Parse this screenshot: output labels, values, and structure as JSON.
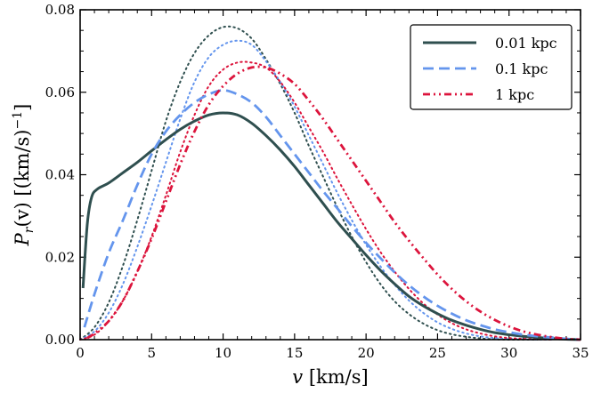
{
  "chart_data": {
    "type": "line",
    "xlabel": "v [km/s]",
    "ylabel": "P_r(v) [(km/s)^-1]",
    "xlabel_parts": {
      "symbol": "v",
      "unit": " [km/s]"
    },
    "ylabel_parts": {
      "symbol": "P",
      "sub": "r",
      "arg": "(v)",
      "unit": " [(km/s)",
      "exp": "−1",
      "close": "]"
    },
    "xlim": [
      0,
      35
    ],
    "ylim": [
      0,
      0.08
    ],
    "xticks": [
      0,
      5,
      10,
      15,
      20,
      25,
      30,
      35
    ],
    "yticks": [
      0.0,
      0.02,
      0.04,
      0.06,
      0.08
    ],
    "xtick_labels": [
      "0",
      "5",
      "10",
      "15",
      "20",
      "25",
      "30",
      "35"
    ],
    "ytick_labels": [
      "0.00",
      "0.02",
      "0.04",
      "0.06",
      "0.08"
    ],
    "grid": false,
    "legend_position": "top-right",
    "series": [
      {
        "name": "0.01 kpc",
        "color": "#2f4f4f",
        "style": "solid",
        "in_legend": true,
        "x": [
          0.2,
          0.5,
          0.8,
          1.2,
          2,
          3,
          4,
          5,
          6,
          7,
          8,
          9,
          10,
          11,
          12,
          13,
          14,
          15,
          16,
          17,
          18,
          19,
          20,
          21,
          22,
          23,
          24,
          25,
          26,
          27,
          28,
          29,
          30,
          31,
          32,
          33,
          34,
          35
        ],
        "values": [
          0.0125,
          0.028,
          0.0345,
          0.0365,
          0.038,
          0.0405,
          0.043,
          0.0458,
          0.0485,
          0.051,
          0.053,
          0.0545,
          0.055,
          0.0545,
          0.0525,
          0.0495,
          0.046,
          0.042,
          0.0375,
          0.033,
          0.0285,
          0.0245,
          0.0205,
          0.0168,
          0.0135,
          0.0105,
          0.0082,
          0.0063,
          0.0047,
          0.0035,
          0.0025,
          0.0017,
          0.0012,
          0.0008,
          0.0005,
          0.0003,
          0.0001,
          0.0
        ]
      },
      {
        "name": "0.1 kpc",
        "color": "#6495ed",
        "style": "dashed",
        "in_legend": true,
        "x": [
          0.3,
          1,
          2,
          3,
          4,
          5,
          6,
          7,
          8,
          9,
          10,
          11,
          12,
          13,
          14,
          15,
          16,
          17,
          18,
          19,
          20,
          21,
          22,
          23,
          24,
          25,
          26,
          27,
          28,
          29,
          30,
          31,
          32,
          33,
          34,
          35
        ],
        "values": [
          0.003,
          0.011,
          0.021,
          0.029,
          0.0375,
          0.045,
          0.0505,
          0.0545,
          0.0575,
          0.0595,
          0.0605,
          0.0595,
          0.0575,
          0.054,
          0.0495,
          0.045,
          0.0405,
          0.036,
          0.0318,
          0.0275,
          0.0235,
          0.0198,
          0.0163,
          0.0132,
          0.0105,
          0.0082,
          0.0063,
          0.0047,
          0.0035,
          0.0025,
          0.0018,
          0.0012,
          0.0008,
          0.0005,
          0.0002,
          0.0
        ]
      },
      {
        "name": "1 kpc",
        "color": "#dc143c",
        "style": "dashdotdot",
        "in_legend": true,
        "x": [
          0.5,
          1,
          2,
          3,
          4,
          5,
          6,
          7,
          8,
          9,
          10,
          11,
          12,
          13,
          14,
          15,
          16,
          17,
          18,
          19,
          20,
          21,
          22,
          23,
          24,
          25,
          26,
          27,
          28,
          29,
          30,
          31,
          32,
          33,
          34,
          35
        ],
        "values": [
          0.0004,
          0.0015,
          0.0045,
          0.0095,
          0.0165,
          0.0245,
          0.0335,
          0.0425,
          0.0505,
          0.057,
          0.0615,
          0.0645,
          0.066,
          0.066,
          0.0645,
          0.062,
          0.058,
          0.0535,
          0.0485,
          0.0435,
          0.0385,
          0.0335,
          0.0285,
          0.024,
          0.0198,
          0.0158,
          0.0123,
          0.0093,
          0.0068,
          0.0048,
          0.0032,
          0.002,
          0.0012,
          0.0006,
          0.0002,
          0.0
        ]
      },
      {
        "name": "dotted slate",
        "color": "#2f4f4f",
        "style": "dotted",
        "in_legend": false,
        "x": [
          0,
          1,
          2,
          3,
          4,
          5,
          6,
          7,
          8,
          9,
          10,
          11,
          12,
          13,
          14,
          15,
          16,
          17,
          18,
          19,
          20,
          21,
          22,
          23,
          24,
          25,
          26,
          27,
          28,
          29,
          30,
          31,
          32
        ],
        "values": [
          0.0,
          0.003,
          0.009,
          0.018,
          0.029,
          0.041,
          0.053,
          0.0625,
          0.0695,
          0.0738,
          0.0758,
          0.0755,
          0.073,
          0.068,
          0.062,
          0.055,
          0.047,
          0.0395,
          0.032,
          0.025,
          0.0188,
          0.0135,
          0.0093,
          0.0062,
          0.0039,
          0.0023,
          0.0013,
          0.0007,
          0.0003,
          0.0001,
          0.0,
          0.0,
          0.0
        ]
      },
      {
        "name": "dotted blue",
        "color": "#6495ed",
        "style": "dotted",
        "in_legend": false,
        "x": [
          0,
          1,
          2,
          3,
          4,
          5,
          6,
          7,
          8,
          9,
          10,
          11,
          12,
          13,
          14,
          15,
          16,
          17,
          18,
          19,
          20,
          21,
          22,
          23,
          24,
          25,
          26,
          27,
          28,
          29,
          30,
          31,
          32,
          33
        ],
        "values": [
          0.0,
          0.002,
          0.0065,
          0.0135,
          0.0225,
          0.0325,
          0.043,
          0.0535,
          0.0625,
          0.0685,
          0.0715,
          0.0725,
          0.0715,
          0.0675,
          0.0625,
          0.0565,
          0.0495,
          0.0425,
          0.0355,
          0.029,
          0.023,
          0.0178,
          0.0133,
          0.0095,
          0.0065,
          0.0042,
          0.0026,
          0.0015,
          0.0008,
          0.0004,
          0.0002,
          0.0001,
          0.0,
          0.0
        ]
      },
      {
        "name": "dotted crimson",
        "color": "#dc143c",
        "style": "dotted",
        "in_legend": false,
        "x": [
          0,
          1,
          2,
          3,
          4,
          5,
          6,
          7,
          8,
          9,
          10,
          11,
          12,
          13,
          14,
          15,
          16,
          17,
          18,
          19,
          20,
          21,
          22,
          23,
          24,
          25,
          26,
          27,
          28,
          29,
          30,
          31,
          32,
          33
        ],
        "values": [
          0.0,
          0.0012,
          0.0045,
          0.0095,
          0.0165,
          0.025,
          0.035,
          0.0455,
          0.0545,
          0.0615,
          0.0655,
          0.0672,
          0.0672,
          0.066,
          0.0625,
          0.0575,
          0.0515,
          0.0455,
          0.039,
          0.0328,
          0.0268,
          0.0213,
          0.0165,
          0.0123,
          0.0088,
          0.0061,
          0.004,
          0.0025,
          0.0015,
          0.0008,
          0.0004,
          0.0002,
          0.0001,
          0.0
        ]
      }
    ]
  }
}
